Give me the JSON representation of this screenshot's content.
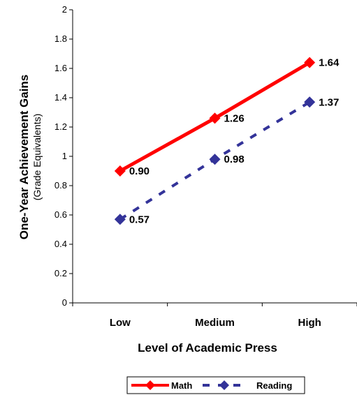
{
  "chart_data": {
    "type": "line",
    "title": "",
    "xlabel": "Level of Academic Press",
    "ylabel": "One-Year Achievement Gains",
    "ylabel_sub": "(Grade Equivalents)",
    "categories": [
      "Low",
      "Medium",
      "High"
    ],
    "ylim": [
      0,
      2
    ],
    "yticks": [
      "0",
      "0.2",
      "0.4",
      "0.6",
      "0.8",
      "1",
      "1.2",
      "1.4",
      "1.6",
      "1.8",
      "2"
    ],
    "grid": false,
    "legend_position": "bottom",
    "series": [
      {
        "name": "Math",
        "values": [
          0.9,
          1.26,
          1.64
        ],
        "labels": [
          "0.90",
          "1.26",
          "1.64"
        ],
        "color": "#ff0000",
        "line_style": "solid",
        "marker": "diamond"
      },
      {
        "name": "Reading",
        "values": [
          0.57,
          0.98,
          1.37
        ],
        "labels": [
          "0.57",
          "0.98",
          "1.37"
        ],
        "color": "#333399",
        "line_style": "dashed",
        "marker": "diamond"
      }
    ]
  }
}
